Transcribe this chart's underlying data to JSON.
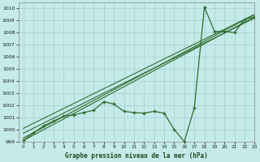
{
  "title": "Graphe pression niveau de la mer (hPa)",
  "bg_color": "#c5eaea",
  "grid_color": "#a8cccc",
  "line_color": "#2d6e2d",
  "xlim": [
    -0.5,
    23
  ],
  "ylim": [
    999,
    1010.5
  ],
  "xticks": [
    0,
    1,
    2,
    3,
    4,
    5,
    6,
    7,
    8,
    9,
    10,
    11,
    12,
    13,
    14,
    15,
    16,
    17,
    18,
    19,
    20,
    21,
    22,
    23
  ],
  "yticks": [
    999,
    1000,
    1001,
    1002,
    1003,
    1004,
    1005,
    1006,
    1007,
    1008,
    1009,
    1010
  ],
  "straight_lines": [
    {
      "x": [
        0,
        23
      ],
      "y": [
        999.1,
        1009.3
      ]
    },
    {
      "x": [
        0,
        23
      ],
      "y": [
        999.3,
        1009.5
      ]
    },
    {
      "x": [
        0,
        23
      ],
      "y": [
        999.7,
        1009.2
      ]
    },
    {
      "x": [
        0,
        23
      ],
      "y": [
        1000.1,
        1009.5
      ]
    }
  ],
  "zigzag": {
    "x": [
      0,
      1,
      2,
      3,
      4,
      5,
      6,
      7,
      8,
      9,
      10,
      11,
      12,
      13,
      14,
      15,
      16,
      17,
      18,
      19,
      20,
      21,
      22,
      23
    ],
    "y": [
      999.1,
      999.7,
      1000.3,
      1000.7,
      1001.1,
      1001.2,
      1001.4,
      1001.6,
      1002.3,
      1002.1,
      1001.5,
      1001.4,
      1001.35,
      1001.5,
      1001.35,
      1000.0,
      999.0,
      1001.8,
      1010.1,
      1008.1,
      1008.1,
      1008.0,
      1009.1,
      1009.3
    ]
  }
}
